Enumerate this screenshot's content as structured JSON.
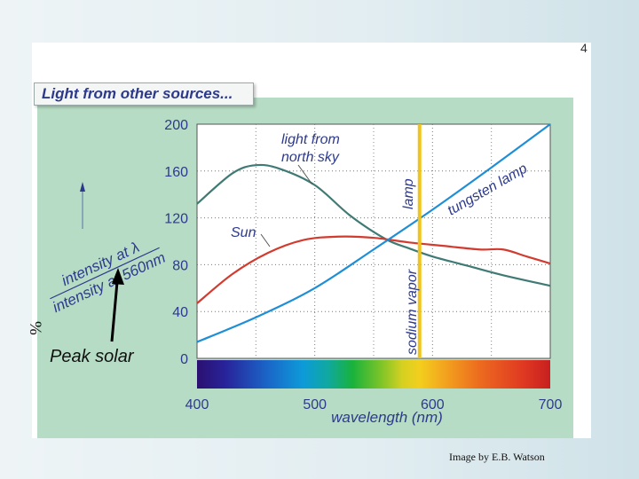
{
  "page_number": "4",
  "credit": "Image by E.B. Watson",
  "annotations": {
    "percent_sign": "%",
    "peak_solar": "Peak solar",
    "arrow_icon": "up-arrow-icon"
  },
  "colors": {
    "panel": "#b7dcc5",
    "sun": "#d23b2f",
    "north_sky": "#3f7a74",
    "tungsten": "#1e8fd6",
    "sodium": "#f0c419",
    "title": "#2d3a8c"
  },
  "chart_data": {
    "type": "line",
    "title": "Light from other sources...",
    "xlabel": "wavelength (nm)",
    "ylabel_numerator": "intensity at λ",
    "ylabel_denominator": "intensity at 560nm",
    "xlim": [
      400,
      700
    ],
    "ylim": [
      0,
      200
    ],
    "xticks": [
      400,
      500,
      600,
      700
    ],
    "yticks": [
      0,
      40,
      80,
      120,
      160,
      200
    ],
    "grid": true,
    "color_spectrum_band": true,
    "series": [
      {
        "name": "light from north sky",
        "color": "#3f7a74",
        "x": [
          400,
          430,
          450,
          470,
          500,
          530,
          560,
          580,
          600,
          630,
          660,
          700
        ],
        "y": [
          132,
          158,
          165,
          162,
          148,
          122,
          102,
          94,
          87,
          79,
          71,
          62
        ]
      },
      {
        "name": "Sun",
        "color": "#d23b2f",
        "x": [
          400,
          430,
          460,
          490,
          520,
          550,
          580,
          610,
          640,
          660,
          680,
          700
        ],
        "y": [
          47,
          72,
          90,
          101,
          104,
          103,
          99,
          96,
          93,
          93,
          87,
          81
        ]
      },
      {
        "name": "tungsten lamp",
        "color": "#1e8fd6",
        "x": [
          400,
          450,
          500,
          550,
          600,
          650,
          700
        ],
        "y": [
          14,
          35,
          60,
          93,
          127,
          163,
          200
        ]
      },
      {
        "name": "sodium vapor lamp",
        "color": "#f0c419",
        "x": [
          589,
          589
        ],
        "y": [
          0,
          200
        ]
      }
    ],
    "labels": {
      "north_sky_line1": "light from",
      "north_sky_line2": "north sky",
      "sun": "Sun",
      "sodium_line1": "sodium vapor",
      "sodium_line2": "lamp",
      "tungsten": "tungsten lamp"
    }
  }
}
